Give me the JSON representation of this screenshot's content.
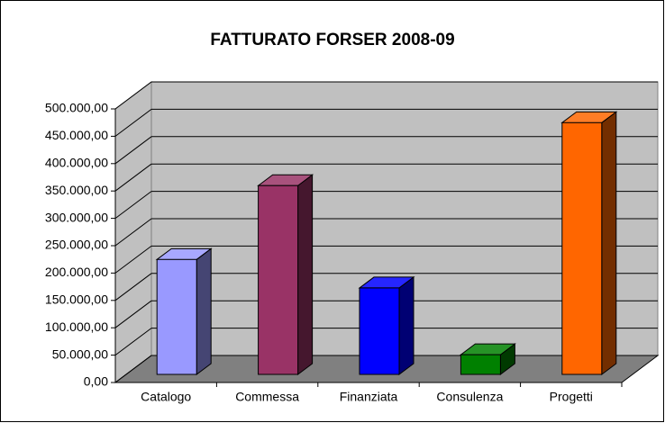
{
  "chart_data": {
    "type": "bar3d",
    "title": "FATTURATO FORSER 2008-09",
    "categories": [
      "Catalogo",
      "Commessa",
      "Finanziata",
      "Consulenza",
      "Progetti"
    ],
    "values": [
      210000,
      345000,
      158000,
      36000,
      460000
    ],
    "colors": [
      "#9999ff",
      "#993366",
      "#0000ff",
      "#008000",
      "#ff6600"
    ],
    "ylim": [
      0,
      500000
    ],
    "yticks": [
      {
        "value": 0,
        "label": "0,00"
      },
      {
        "value": 50000,
        "label": "50.000,00"
      },
      {
        "value": 100000,
        "label": "100.000,00"
      },
      {
        "value": 150000,
        "label": "150.000,00"
      },
      {
        "value": 200000,
        "label": "200.000,00"
      },
      {
        "value": 250000,
        "label": "250.000,00"
      },
      {
        "value": 300000,
        "label": "300.000,00"
      },
      {
        "value": 350000,
        "label": "350.000,00"
      },
      {
        "value": 400000,
        "label": "400.000,00"
      },
      {
        "value": 450000,
        "label": "450.000,00"
      },
      {
        "value": 500000,
        "label": "500.000,00"
      }
    ],
    "grid": true
  }
}
